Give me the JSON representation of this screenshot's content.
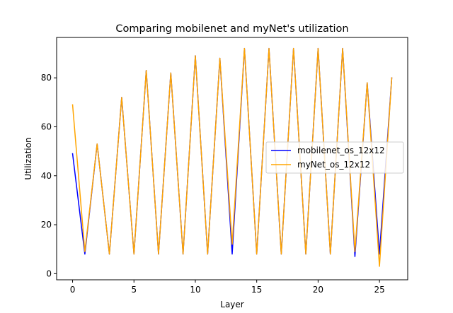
{
  "chart_data": {
    "type": "line",
    "title": "Comparing mobilenet and myNet's utilization",
    "xlabel": "Layer",
    "ylabel": "Utilization",
    "xlim": [
      -1.3,
      27.3
    ],
    "ylim": [
      -2.5,
      96.5
    ],
    "xticks": [
      0,
      5,
      10,
      15,
      20,
      25
    ],
    "yticks": [
      0,
      20,
      40,
      60,
      80
    ],
    "grid": false,
    "legend_position": "center-right",
    "x": [
      0,
      1,
      2,
      3,
      4,
      5,
      6,
      7,
      8,
      9,
      10,
      11,
      12,
      13,
      14,
      15,
      16,
      17,
      18,
      19,
      20,
      21,
      22,
      23,
      24,
      25,
      26
    ],
    "series": [
      {
        "name": "mobilenet_os_12x12",
        "color": "#0000ff",
        "values": [
          49,
          8,
          53,
          8,
          72,
          8,
          83,
          8,
          82,
          8,
          89,
          8,
          88,
          8,
          92,
          8,
          92,
          8,
          92,
          8,
          92,
          8,
          92,
          7,
          78,
          8,
          80
        ]
      },
      {
        "name": "myNet_os_12x12",
        "color": "#ffa500",
        "values": [
          69,
          9,
          53,
          8,
          72,
          8,
          83,
          8,
          82,
          8,
          89,
          8,
          88,
          12,
          92,
          8,
          92,
          8,
          92,
          8,
          92,
          8,
          92,
          9,
          78,
          3,
          80
        ]
      }
    ]
  }
}
